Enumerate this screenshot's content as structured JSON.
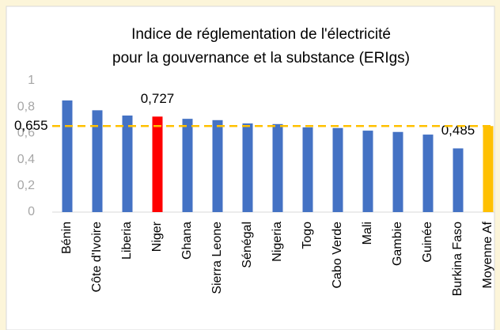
{
  "chart_data": {
    "type": "bar",
    "title": [
      "Indice de réglementation de l'électricité",
      "pour la gouvernance et la substance (ERIgs)"
    ],
    "categories": [
      "Bénin",
      "Côte d'Ivoire",
      "Liberia",
      "Niger",
      "Ghana",
      "Sierra Leone",
      "Sénégal",
      "Nigeria",
      "Togo",
      "Cabo Verde",
      "Mali",
      "Gambie",
      "Guinée",
      "Burkina Faso",
      "Moyenne Af"
    ],
    "values": [
      0.85,
      0.775,
      0.735,
      0.727,
      0.71,
      0.7,
      0.675,
      0.67,
      0.645,
      0.64,
      0.62,
      0.61,
      0.59,
      0.485,
      0.655
    ],
    "value_labels": [
      null,
      null,
      null,
      "0,727",
      null,
      null,
      null,
      null,
      null,
      null,
      null,
      null,
      null,
      "0,485",
      null
    ],
    "colors": [
      "#4472c4",
      "#4472c4",
      "#4472c4",
      "#ff0000",
      "#4472c4",
      "#4472c4",
      "#4472c4",
      "#4472c4",
      "#4472c4",
      "#4472c4",
      "#4472c4",
      "#4472c4",
      "#4472c4",
      "#4472c4",
      "#ffc000"
    ],
    "reference_line": {
      "value": 0.655,
      "label": "0,655",
      "color": "#ffc000"
    },
    "ylim": [
      0,
      1
    ],
    "yticks": [
      0,
      {
        "value": 0.2,
        "label": "0,2"
      },
      {
        "value": 0.4,
        "label": "0,4"
      },
      {
        "value": 0.6,
        "label": "0,6"
      },
      {
        "value": 0.8,
        "label": "0,8"
      },
      1
    ],
    "grid": false
  }
}
